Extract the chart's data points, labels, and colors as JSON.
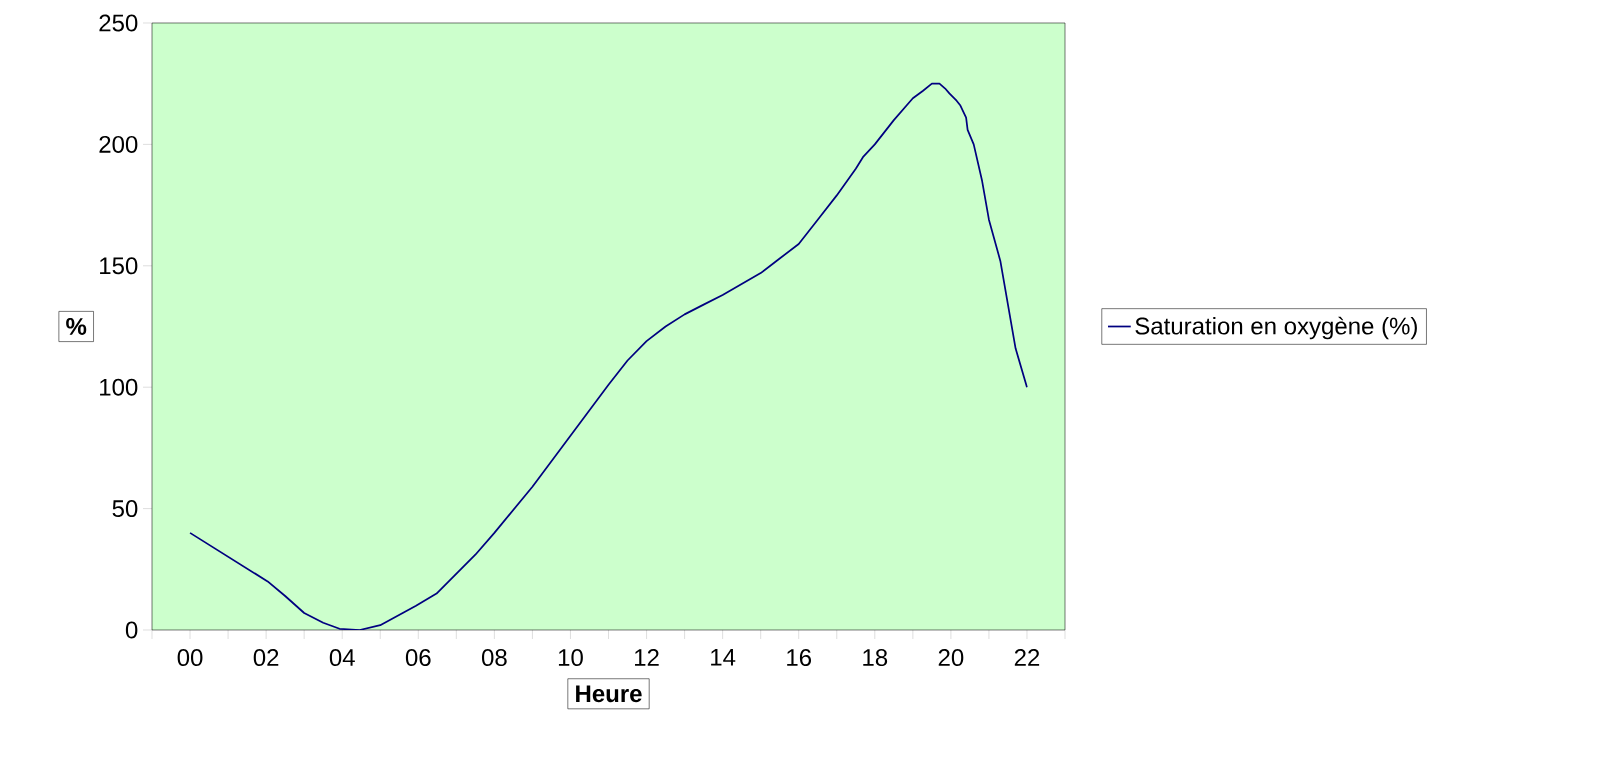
{
  "chart_data": {
    "type": "line",
    "xlabel": "Heure",
    "ylabel": "%",
    "x": [
      0,
      2.04,
      2.5,
      3.0,
      3.5,
      3.93,
      4.46,
      5,
      5.94,
      6.48,
      7.5,
      8,
      9,
      10,
      11,
      11.5,
      12,
      12.5,
      13,
      13.5,
      14,
      15,
      15.5,
      16,
      16.5,
      17,
      17.5,
      17.7,
      18,
      18.5,
      19,
      19.26,
      19.5,
      19.7,
      19.85,
      19.96,
      20.15,
      20.25,
      20.4,
      20.44,
      20.6,
      20.82,
      21,
      21.3,
      21.7,
      22
    ],
    "series": [
      {
        "name": "Saturation en oxygène (%)",
        "color": "#000080",
        "values": [
          40,
          20,
          14,
          7,
          3,
          0.5,
          0,
          2,
          10,
          15,
          31,
          40,
          59,
          80,
          101,
          111,
          119,
          125,
          130,
          134,
          138,
          147,
          153,
          159,
          169,
          179,
          190,
          195,
          200,
          210,
          219,
          222,
          225,
          225,
          223,
          221,
          218,
          216,
          211,
          206,
          200,
          185,
          169,
          152,
          116,
          100
        ]
      }
    ],
    "xlim": [
      -1,
      23
    ],
    "xticks": [
      {
        "value": -1,
        "label": null
      },
      {
        "value": 0,
        "label": "00"
      },
      {
        "value": 1,
        "label": null
      },
      {
        "value": 2,
        "label": "02"
      },
      {
        "value": 3,
        "label": null
      },
      {
        "value": 4,
        "label": "04"
      },
      {
        "value": 5,
        "label": null
      },
      {
        "value": 6,
        "label": "06"
      },
      {
        "value": 7,
        "label": null
      },
      {
        "value": 8,
        "label": "08"
      },
      {
        "value": 9,
        "label": null
      },
      {
        "value": 10,
        "label": "10"
      },
      {
        "value": 11,
        "label": null
      },
      {
        "value": 12,
        "label": "12"
      },
      {
        "value": 13,
        "label": null
      },
      {
        "value": 14,
        "label": "14"
      },
      {
        "value": 15,
        "label": null
      },
      {
        "value": 16,
        "label": "16"
      },
      {
        "value": 17,
        "label": null
      },
      {
        "value": 18,
        "label": "18"
      },
      {
        "value": 19,
        "label": null
      },
      {
        "value": 20,
        "label": "20"
      },
      {
        "value": 21,
        "label": null
      },
      {
        "value": 22,
        "label": "22"
      },
      {
        "value": 23,
        "label": null
      }
    ],
    "ylim": [
      0,
      250
    ],
    "yticks": [
      0,
      50,
      100,
      150,
      200,
      250
    ],
    "legend": "right"
  }
}
